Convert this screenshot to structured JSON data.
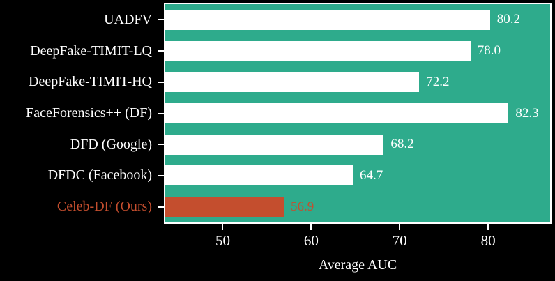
{
  "chart_data": {
    "type": "bar",
    "orientation": "horizontal",
    "title": "",
    "xlabel": "Average AUC",
    "categories": [
      "UADFV",
      "DeepFake-TIMIT-LQ",
      "DeepFake-TIMIT-HQ",
      "FaceForensics++ (DF)",
      "DFD (Google)",
      "DFDC (Facebook)",
      "Celeb-DF (Ours)"
    ],
    "values": [
      80.2,
      78.0,
      72.2,
      82.3,
      68.2,
      64.7,
      56.9
    ],
    "value_labels": [
      "80.2",
      "78.0",
      "72.2",
      "82.3",
      "68.2",
      "64.7",
      "56.9"
    ],
    "highlight_index": 6,
    "xticks": [
      "50",
      "60",
      "70",
      "80"
    ],
    "xtick_values": [
      50,
      60,
      70,
      80
    ],
    "xlim": [
      43.5,
      87
    ],
    "grid": false,
    "legend": null,
    "colors": {
      "background": "#000000",
      "plot_background": "#2eab8c",
      "bar": "#ffffff",
      "highlight": "#c44e2e",
      "spine": "#ffffff",
      "text": "#ffffff"
    }
  }
}
